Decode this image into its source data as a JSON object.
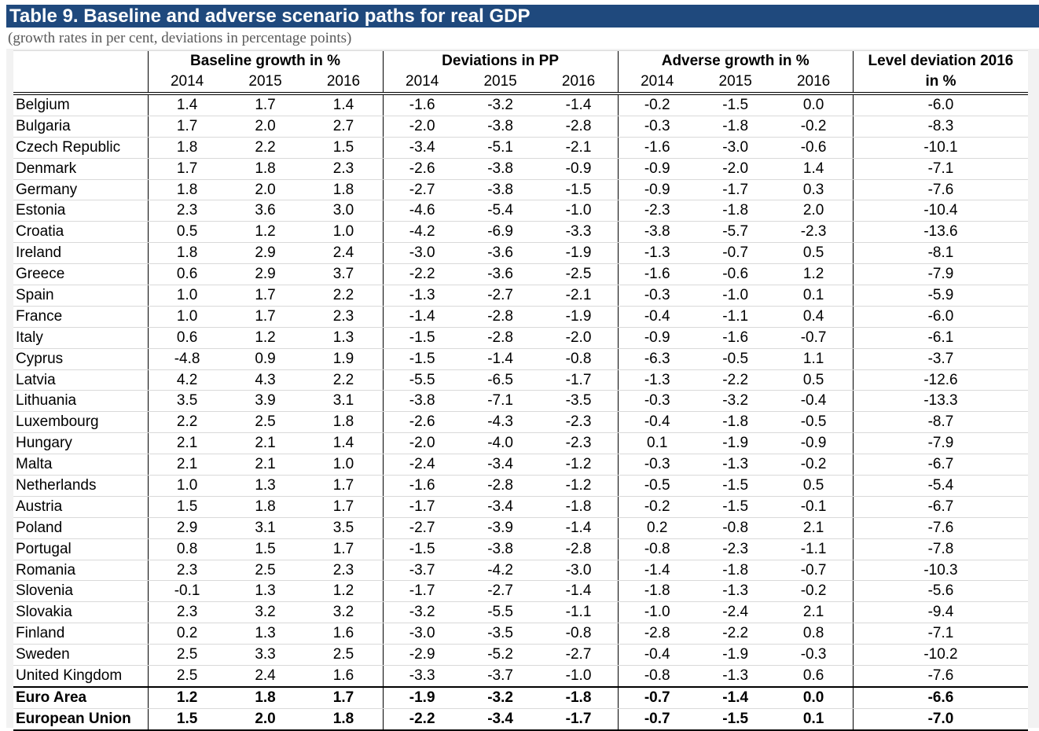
{
  "title": "Table 9. Baseline and adverse scenario paths for real GDP",
  "subtitle": "(growth rates in per cent, deviations in percentage points)",
  "header": {
    "group_baseline": "Baseline growth in %",
    "group_deviations": "Deviations in PP",
    "group_adverse": "Adverse growth in %",
    "level_line1": "Level deviation 2016",
    "level_line2": "in %",
    "years": [
      "2014",
      "2015",
      "2016",
      "2014",
      "2015",
      "2016",
      "2014",
      "2015",
      "2016"
    ]
  },
  "rows": [
    [
      "Belgium",
      "1.4",
      "1.7",
      "1.4",
      "-1.6",
      "-3.2",
      "-1.4",
      "-0.2",
      "-1.5",
      "0.0",
      "-6.0"
    ],
    [
      "Bulgaria",
      "1.7",
      "2.0",
      "2.7",
      "-2.0",
      "-3.8",
      "-2.8",
      "-0.3",
      "-1.8",
      "-0.2",
      "-8.3"
    ],
    [
      "Czech Republic",
      "1.8",
      "2.2",
      "1.5",
      "-3.4",
      "-5.1",
      "-2.1",
      "-1.6",
      "-3.0",
      "-0.6",
      "-10.1"
    ],
    [
      "Denmark",
      "1.7",
      "1.8",
      "2.3",
      "-2.6",
      "-3.8",
      "-0.9",
      "-0.9",
      "-2.0",
      "1.4",
      "-7.1"
    ],
    [
      "Germany",
      "1.8",
      "2.0",
      "1.8",
      "-2.7",
      "-3.8",
      "-1.5",
      "-0.9",
      "-1.7",
      "0.3",
      "-7.6"
    ],
    [
      "Estonia",
      "2.3",
      "3.6",
      "3.0",
      "-4.6",
      "-5.4",
      "-1.0",
      "-2.3",
      "-1.8",
      "2.0",
      "-10.4"
    ],
    [
      "Croatia",
      "0.5",
      "1.2",
      "1.0",
      "-4.2",
      "-6.9",
      "-3.3",
      "-3.8",
      "-5.7",
      "-2.3",
      "-13.6"
    ],
    [
      "Ireland",
      "1.8",
      "2.9",
      "2.4",
      "-3.0",
      "-3.6",
      "-1.9",
      "-1.3",
      "-0.7",
      "0.5",
      "-8.1"
    ],
    [
      "Greece",
      "0.6",
      "2.9",
      "3.7",
      "-2.2",
      "-3.6",
      "-2.5",
      "-1.6",
      "-0.6",
      "1.2",
      "-7.9"
    ],
    [
      "Spain",
      "1.0",
      "1.7",
      "2.2",
      "-1.3",
      "-2.7",
      "-2.1",
      "-0.3",
      "-1.0",
      "0.1",
      "-5.9"
    ],
    [
      "France",
      "1.0",
      "1.7",
      "2.3",
      "-1.4",
      "-2.8",
      "-1.9",
      "-0.4",
      "-1.1",
      "0.4",
      "-6.0"
    ],
    [
      "Italy",
      "0.6",
      "1.2",
      "1.3",
      "-1.5",
      "-2.8",
      "-2.0",
      "-0.9",
      "-1.6",
      "-0.7",
      "-6.1"
    ],
    [
      "Cyprus",
      "-4.8",
      "0.9",
      "1.9",
      "-1.5",
      "-1.4",
      "-0.8",
      "-6.3",
      "-0.5",
      "1.1",
      "-3.7"
    ],
    [
      "Latvia",
      "4.2",
      "4.3",
      "2.2",
      "-5.5",
      "-6.5",
      "-1.7",
      "-1.3",
      "-2.2",
      "0.5",
      "-12.6"
    ],
    [
      "Lithuania",
      "3.5",
      "3.9",
      "3.1",
      "-3.8",
      "-7.1",
      "-3.5",
      "-0.3",
      "-3.2",
      "-0.4",
      "-13.3"
    ],
    [
      "Luxembourg",
      "2.2",
      "2.5",
      "1.8",
      "-2.6",
      "-4.3",
      "-2.3",
      "-0.4",
      "-1.8",
      "-0.5",
      "-8.7"
    ],
    [
      "Hungary",
      "2.1",
      "2.1",
      "1.4",
      "-2.0",
      "-4.0",
      "-2.3",
      "0.1",
      "-1.9",
      "-0.9",
      "-7.9"
    ],
    [
      "Malta",
      "2.1",
      "2.1",
      "1.0",
      "-2.4",
      "-3.4",
      "-1.2",
      "-0.3",
      "-1.3",
      "-0.2",
      "-6.7"
    ],
    [
      "Netherlands",
      "1.0",
      "1.3",
      "1.7",
      "-1.6",
      "-2.8",
      "-1.2",
      "-0.5",
      "-1.5",
      "0.5",
      "-5.4"
    ],
    [
      "Austria",
      "1.5",
      "1.8",
      "1.7",
      "-1.7",
      "-3.4",
      "-1.8",
      "-0.2",
      "-1.5",
      "-0.1",
      "-6.7"
    ],
    [
      "Poland",
      "2.9",
      "3.1",
      "3.5",
      "-2.7",
      "-3.9",
      "-1.4",
      "0.2",
      "-0.8",
      "2.1",
      "-7.6"
    ],
    [
      "Portugal",
      "0.8",
      "1.5",
      "1.7",
      "-1.5",
      "-3.8",
      "-2.8",
      "-0.8",
      "-2.3",
      "-1.1",
      "-7.8"
    ],
    [
      "Romania",
      "2.3",
      "2.5",
      "2.3",
      "-3.7",
      "-4.2",
      "-3.0",
      "-1.4",
      "-1.8",
      "-0.7",
      "-10.3"
    ],
    [
      "Slovenia",
      "-0.1",
      "1.3",
      "1.2",
      "-1.7",
      "-2.7",
      "-1.4",
      "-1.8",
      "-1.3",
      "-0.2",
      "-5.6"
    ],
    [
      "Slovakia",
      "2.3",
      "3.2",
      "3.2",
      "-3.2",
      "-5.5",
      "-1.1",
      "-1.0",
      "-2.4",
      "2.1",
      "-9.4"
    ],
    [
      "Finland",
      "0.2",
      "1.3",
      "1.6",
      "-3.0",
      "-3.5",
      "-0.8",
      "-2.8",
      "-2.2",
      "0.8",
      "-7.1"
    ],
    [
      "Sweden",
      "2.5",
      "3.3",
      "2.5",
      "-2.9",
      "-5.2",
      "-2.7",
      "-0.4",
      "-1.9",
      "-0.3",
      "-10.2"
    ],
    [
      "United Kingdom",
      "2.5",
      "2.4",
      "1.6",
      "-3.3",
      "-3.7",
      "-1.0",
      "-0.8",
      "-1.3",
      "0.6",
      "-7.6"
    ]
  ],
  "aggregates": [
    [
      "Euro Area",
      "1.2",
      "1.8",
      "1.7",
      "-1.9",
      "-3.2",
      "-1.8",
      "-0.7",
      "-1.4",
      "0.0",
      "-6.6"
    ],
    [
      "European Union",
      "1.5",
      "2.0",
      "1.8",
      "-2.2",
      "-3.4",
      "-1.7",
      "-0.7",
      "-1.5",
      "0.1",
      "-7.0"
    ]
  ]
}
